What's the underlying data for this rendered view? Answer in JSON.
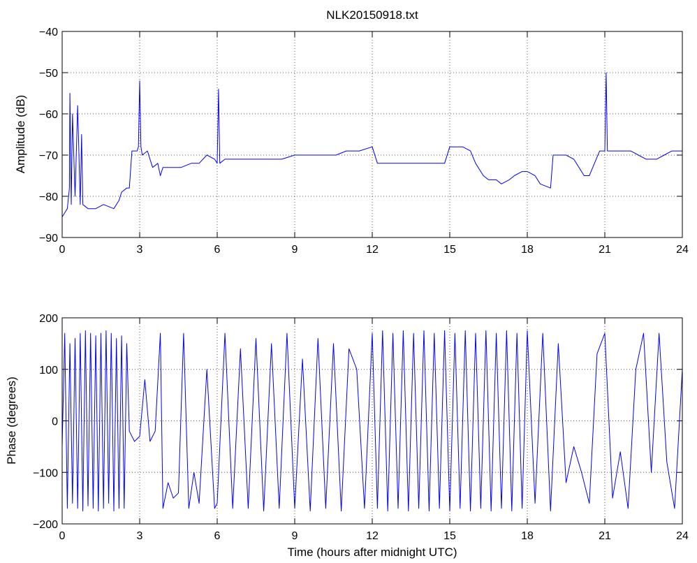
{
  "chart_data": [
    {
      "type": "line",
      "title": "NLK20150918.txt",
      "xlabel": "",
      "ylabel": "Amplitude (dB)",
      "xlim": [
        0,
        24
      ],
      "ylim": [
        -90,
        -40
      ],
      "x_ticks": [
        0,
        3,
        6,
        9,
        12,
        15,
        18,
        21,
        24
      ],
      "x_tick_labels": [
        "0",
        "3",
        "6",
        "9",
        "12",
        "15",
        "18",
        "21",
        "24"
      ],
      "y_ticks": [
        -90,
        -80,
        -70,
        -60,
        -50,
        -40
      ],
      "y_tick_labels": [
        "−90",
        "−80",
        "−70",
        "−60",
        "−50",
        "−40"
      ],
      "grid": true,
      "color": "#0000ff",
      "series": [
        {
          "x": [
            0.0,
            0.1,
            0.2,
            0.28,
            0.3,
            0.35,
            0.4,
            0.5,
            0.6,
            0.7,
            0.75,
            0.8,
            1.0,
            1.3,
            1.6,
            2.0,
            2.2,
            2.3,
            2.5,
            2.6,
            2.7,
            2.8,
            2.9,
            2.95,
            3.0,
            3.05,
            3.1,
            3.3,
            3.5,
            3.7,
            3.8,
            3.9,
            4.0,
            4.3,
            4.6,
            5.0,
            5.3,
            5.6,
            5.9,
            6.0,
            6.05,
            6.1,
            6.3,
            6.6,
            7.0,
            7.5,
            8.0,
            8.5,
            9.0,
            9.5,
            10.0,
            10.3,
            10.6,
            11.0,
            11.5,
            12.0,
            12.2,
            12.5,
            13.0,
            13.5,
            14.0,
            14.5,
            14.8,
            15.0,
            15.5,
            15.8,
            16.0,
            16.3,
            16.5,
            16.8,
            17.0,
            17.3,
            17.5,
            17.8,
            18.0,
            18.3,
            18.5,
            18.9,
            19.0,
            19.5,
            19.8,
            20.0,
            20.2,
            20.4,
            20.6,
            20.8,
            21.0,
            21.05,
            21.1,
            21.3,
            21.5,
            21.8,
            22.0,
            22.3,
            22.6,
            23.0,
            23.3,
            23.6,
            23.8,
            24.0
          ],
          "values": [
            -85,
            -84,
            -83,
            -78,
            -55,
            -82,
            -60,
            -80,
            -58,
            -82,
            -65,
            -82,
            -83,
            -83,
            -82,
            -83,
            -81,
            -79,
            -78,
            -78,
            -69,
            -69,
            -69,
            -68,
            -52,
            -68,
            -70,
            -69,
            -73,
            -72,
            -75,
            -73,
            -73,
            -73,
            -73,
            -72,
            -72,
            -70,
            -71,
            -72,
            -54,
            -72,
            -71,
            -71,
            -71,
            -71,
            -71,
            -71,
            -70,
            -70,
            -70,
            -70,
            -70,
            -69,
            -69,
            -68,
            -72,
            -72,
            -72,
            -72,
            -72,
            -72,
            -72,
            -68,
            -68,
            -69,
            -72,
            -75,
            -76,
            -76,
            -77,
            -76,
            -75,
            -74,
            -74,
            -75,
            -77,
            -78,
            -70,
            -70,
            -71,
            -73,
            -75,
            -75,
            -72,
            -69,
            -69,
            -50,
            -69,
            -69,
            -69,
            -69,
            -69,
            -70,
            -71,
            -71,
            -70,
            -69,
            -69,
            -69
          ]
        }
      ]
    },
    {
      "type": "line",
      "title": "",
      "xlabel": "Time (hours after midnight UTC)",
      "ylabel": "Phase (degrees)",
      "xlim": [
        0,
        24
      ],
      "ylim": [
        -200,
        200
      ],
      "x_ticks": [
        0,
        3,
        6,
        9,
        12,
        15,
        18,
        21,
        24
      ],
      "x_tick_labels": [
        "0",
        "3",
        "6",
        "9",
        "12",
        "15",
        "18",
        "21",
        "24"
      ],
      "y_ticks": [
        -200,
        -100,
        0,
        100,
        200
      ],
      "y_tick_labels": [
        "−200",
        "−100",
        "0",
        "100",
        "200"
      ],
      "grid": true,
      "color": "#0000ff",
      "series": [
        {
          "x": [
            0.0,
            0.1,
            0.2,
            0.3,
            0.4,
            0.5,
            0.6,
            0.7,
            0.8,
            0.9,
            1.0,
            1.1,
            1.2,
            1.3,
            1.4,
            1.5,
            1.6,
            1.7,
            1.8,
            1.9,
            2.0,
            2.1,
            2.2,
            2.3,
            2.4,
            2.5,
            2.6,
            2.8,
            3.0,
            3.2,
            3.4,
            3.6,
            3.8,
            3.9,
            4.1,
            4.3,
            4.5,
            4.7,
            4.9,
            5.1,
            5.3,
            5.6,
            5.9,
            6.0,
            6.3,
            6.6,
            6.9,
            7.2,
            7.5,
            7.8,
            8.1,
            8.4,
            8.7,
            9.0,
            9.3,
            9.6,
            9.9,
            10.2,
            10.5,
            10.8,
            11.1,
            11.4,
            11.7,
            12.0,
            12.2,
            12.4,
            12.6,
            12.8,
            13.0,
            13.2,
            13.4,
            13.6,
            13.8,
            14.0,
            14.2,
            14.4,
            14.6,
            14.8,
            15.0,
            15.2,
            15.4,
            15.6,
            15.8,
            16.0,
            16.2,
            16.4,
            16.6,
            16.8,
            17.0,
            17.2,
            17.4,
            17.6,
            17.8,
            18.0,
            18.3,
            18.6,
            18.9,
            19.2,
            19.5,
            19.8,
            20.1,
            20.4,
            20.7,
            21.0,
            21.3,
            21.6,
            21.9,
            22.2,
            22.5,
            22.8,
            23.1,
            23.4,
            23.7,
            24.0
          ],
          "values": [
            -50,
            170,
            -170,
            150,
            -160,
            160,
            -170,
            170,
            -175,
            175,
            -165,
            170,
            -170,
            165,
            -175,
            170,
            -170,
            175,
            -160,
            170,
            -175,
            160,
            -170,
            165,
            -170,
            150,
            -20,
            -40,
            -30,
            80,
            -40,
            -20,
            170,
            -170,
            -120,
            -150,
            -140,
            170,
            -170,
            -100,
            -160,
            100,
            -170,
            -160,
            170,
            -170,
            140,
            -170,
            160,
            -175,
            150,
            -170,
            170,
            -170,
            120,
            -175,
            160,
            -170,
            150,
            -175,
            140,
            100,
            -170,
            170,
            -170,
            175,
            -175,
            170,
            -170,
            175,
            -175,
            170,
            -170,
            175,
            -175,
            170,
            -170,
            175,
            -175,
            170,
            -170,
            175,
            -175,
            170,
            -170,
            175,
            -175,
            170,
            -170,
            175,
            -175,
            170,
            -170,
            175,
            -160,
            170,
            -175,
            150,
            -120,
            -50,
            -100,
            -160,
            130,
            170,
            -150,
            -60,
            -170,
            100,
            170,
            -100,
            170,
            -80,
            -170,
            100
          ]
        }
      ]
    }
  ]
}
